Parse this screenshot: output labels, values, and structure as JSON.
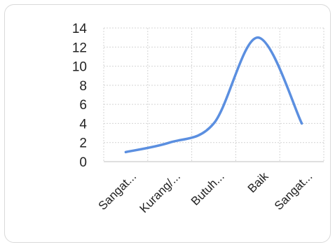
{
  "chart_data": {
    "type": "line",
    "smooth": true,
    "categories": [
      "Sangat...",
      "Kurang/...",
      "Butuh...",
      "Baik",
      "Sangat..."
    ],
    "series": [
      {
        "values": [
          1,
          2,
          4,
          13,
          4
        ],
        "color": "#5b8fe0"
      }
    ],
    "title": "",
    "xlabel": "",
    "ylabel": "",
    "ylim": [
      0,
      14
    ],
    "yticks": [
      "0",
      "2",
      "4",
      "6",
      "8",
      "10",
      "12",
      "14"
    ],
    "grid": true,
    "legend": "none"
  }
}
